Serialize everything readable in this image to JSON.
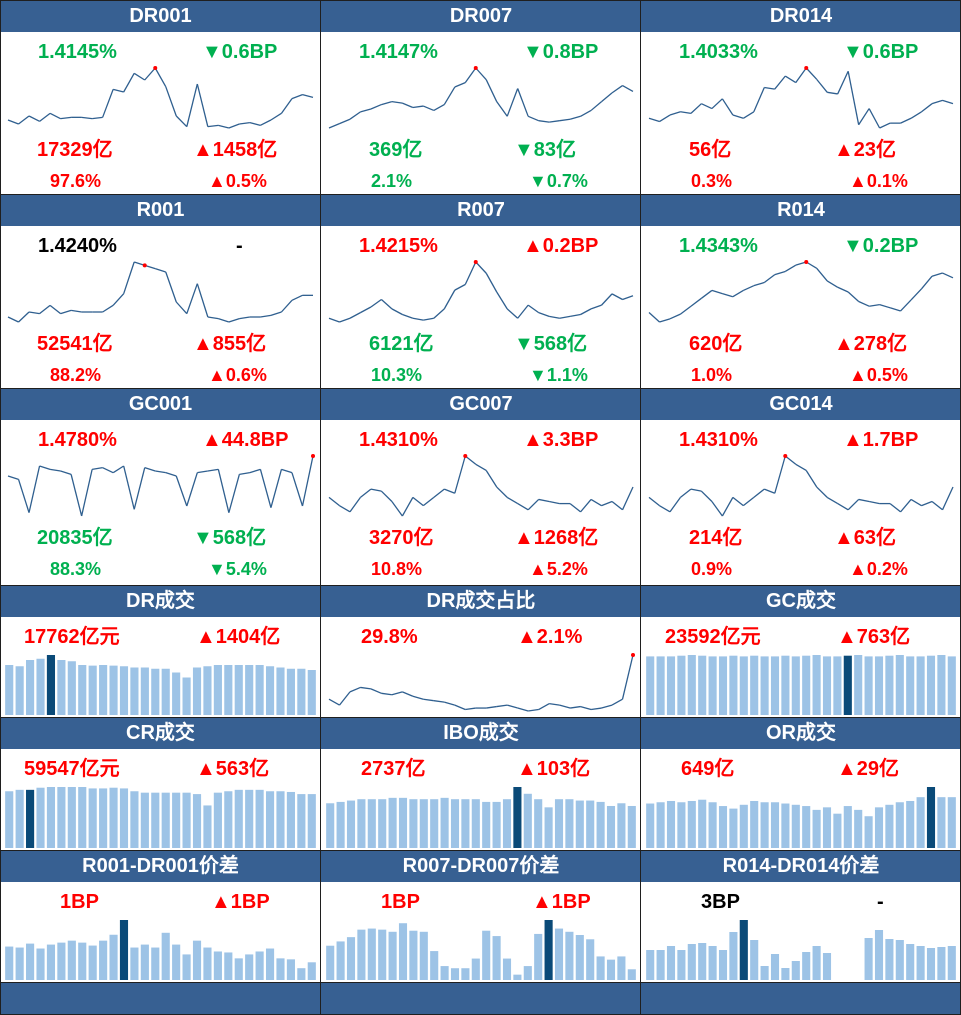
{
  "colors": {
    "up": "#ff0000",
    "down": "#00b050",
    "neutral": "#000000",
    "header_bg": "#376092",
    "line": "#2f5f8f",
    "bar": "#9dc3e6",
    "bar_highlight": "#0a4a78",
    "marker": "#ff0000"
  },
  "rate_panels": [
    {
      "id": "dr001",
      "title": "DR001",
      "rate": "1.4145%",
      "rate_color": "down",
      "bp_change": "▼0.6BP",
      "bp_color": "down",
      "volume": "17329亿",
      "volume_color": "up",
      "volume_change": "▲1458亿",
      "volume_change_color": "up",
      "share": "97.6%",
      "share_color": "up",
      "share_change": "▲0.5%",
      "share_change_color": "up",
      "chart_data": {
        "type": "line",
        "values": [
          55,
          52,
          58,
          54,
          60,
          56,
          57,
          57,
          56,
          57,
          78,
          76,
          90,
          85,
          94,
          80,
          58,
          50,
          82,
          50,
          51,
          49,
          52,
          53,
          51,
          55,
          60,
          71,
          74,
          72
        ],
        "marker_index": 14
      }
    },
    {
      "id": "dr007",
      "title": "DR007",
      "rate": "1.4147%",
      "rate_color": "down",
      "bp_change": "▼0.8BP",
      "bp_color": "down",
      "volume": "369亿",
      "volume_color": "down",
      "volume_change": "▼83亿",
      "volume_change_color": "down",
      "share": "2.1%",
      "share_color": "down",
      "share_change": "▼0.7%",
      "share_change_color": "down",
      "chart_data": {
        "type": "line",
        "values": [
          52,
          55,
          58,
          63,
          65,
          68,
          70,
          69,
          66,
          67,
          64,
          68,
          80,
          83,
          93,
          85,
          70,
          60,
          79,
          60,
          57,
          56,
          57,
          58,
          60,
          64,
          70,
          76,
          81,
          77
        ],
        "marker_index": 14
      }
    },
    {
      "id": "dr014",
      "title": "DR014",
      "rate": "1.4033%",
      "rate_color": "down",
      "bp_change": "▼0.6BP",
      "bp_color": "down",
      "volume": "56亿",
      "volume_color": "up",
      "volume_change": "▲23亿",
      "volume_change_color": "up",
      "share": "0.3%",
      "share_color": "up",
      "share_change": "▲0.1%",
      "share_change_color": "up",
      "chart_data": {
        "type": "line",
        "values": [
          66,
          64,
          68,
          70,
          69,
          75,
          72,
          78,
          68,
          66,
          70,
          85,
          84,
          92,
          88,
          97,
          90,
          82,
          81,
          95,
          62,
          72,
          60,
          63,
          63,
          66,
          70,
          75,
          77,
          75
        ],
        "marker_index": 15
      }
    },
    {
      "id": "r001",
      "title": "R001",
      "rate": "1.4240%",
      "rate_color": "neutral",
      "bp_change": "-",
      "bp_color": "neutral",
      "volume": "52541亿",
      "volume_color": "up",
      "volume_change": "▲855亿",
      "volume_change_color": "up",
      "share": "88.2%",
      "share_color": "up",
      "share_change": "▲0.6%",
      "share_change_color": "up",
      "chart_data": {
        "type": "line",
        "values": [
          48,
          45,
          51,
          50,
          55,
          50,
          52,
          51,
          51,
          51,
          55,
          62,
          81,
          79,
          77,
          75,
          57,
          50,
          68,
          48,
          47,
          45,
          47,
          48,
          48,
          49,
          51,
          58,
          61,
          61
        ],
        "marker_index": 13
      }
    },
    {
      "id": "r007",
      "title": "R007",
      "rate": "1.4215%",
      "rate_color": "up",
      "bp_change": "▲0.2BP",
      "bp_color": "up",
      "volume": "6121亿",
      "volume_color": "down",
      "volume_change": "▼568亿",
      "volume_change_color": "down",
      "share": "10.3%",
      "share_color": "down",
      "share_change": "▼1.1%",
      "share_change_color": "down",
      "chart_data": {
        "type": "line",
        "values": [
          50,
          48,
          50,
          53,
          56,
          60,
          55,
          52,
          50,
          49,
          50,
          55,
          65,
          68,
          80,
          74,
          64,
          55,
          50,
          57,
          53,
          51,
          50,
          51,
          52,
          55,
          57,
          63,
          60,
          62
        ],
        "marker_index": 14
      }
    },
    {
      "id": "r014",
      "title": "R014",
      "rate": "1.4343%",
      "rate_color": "down",
      "bp_change": "▼0.2BP",
      "bp_color": "down",
      "volume": "620亿",
      "volume_color": "up",
      "volume_change": "▲278亿",
      "volume_change_color": "up",
      "share": "1.0%",
      "share_color": "up",
      "share_change": "▲0.5%",
      "share_change_color": "up",
      "chart_data": {
        "type": "line",
        "values": [
          56,
          50,
          52,
          55,
          60,
          65,
          70,
          68,
          66,
          70,
          73,
          75,
          80,
          82,
          86,
          88,
          84,
          76,
          72,
          69,
          63,
          60,
          61,
          59,
          57,
          64,
          71,
          79,
          81,
          78
        ],
        "marker_index": 15
      }
    },
    {
      "id": "gc001",
      "title": "GC001",
      "rate": "1.4780%",
      "rate_color": "up",
      "bp_change": "▲44.8BP",
      "bp_color": "up",
      "volume": "20835亿",
      "volume_color": "down",
      "volume_change": "▼568亿",
      "volume_change_color": "down",
      "share": "88.3%",
      "share_color": "down",
      "share_change": "▼5.4%",
      "share_change_color": "down",
      "chart_data": {
        "type": "line",
        "values": [
          82,
          80,
          60,
          88,
          86,
          85,
          83,
          58,
          86,
          87,
          84,
          88,
          62,
          87,
          85,
          84,
          82,
          64,
          84,
          85,
          86,
          60,
          83,
          84,
          86,
          63,
          86,
          84,
          64,
          94
        ],
        "marker_index": 29
      }
    },
    {
      "id": "gc007",
      "title": "GC007",
      "rate": "1.4310%",
      "rate_color": "up",
      "bp_change": "▲3.3BP",
      "bp_color": "up",
      "volume": "3270亿",
      "volume_color": "up",
      "volume_change": "▲1268亿",
      "volume_change_color": "up",
      "share": "10.8%",
      "share_color": "up",
      "share_change": "▲5.2%",
      "share_change_color": "up",
      "chart_data": {
        "type": "line",
        "values": [
          70,
          66,
          63,
          70,
          74,
          73,
          68,
          61,
          70,
          66,
          70,
          74,
          72,
          90,
          86,
          83,
          75,
          70,
          67,
          64,
          69,
          68,
          67,
          67,
          63,
          69,
          66,
          68,
          64,
          75
        ],
        "marker_index": 13
      }
    },
    {
      "id": "gc014",
      "title": "GC014",
      "rate": "1.4310%",
      "rate_color": "up",
      "bp_change": "▲1.7BP",
      "bp_color": "up",
      "volume": "214亿",
      "volume_color": "up",
      "volume_change": "▲63亿",
      "volume_change_color": "up",
      "share": "0.9%",
      "share_color": "up",
      "share_change": "▲0.2%",
      "share_change_color": "up",
      "chart_data": {
        "type": "line",
        "values": [
          70,
          66,
          63,
          70,
          74,
          73,
          68,
          61,
          70,
          66,
          70,
          74,
          72,
          90,
          86,
          83,
          75,
          70,
          67,
          64,
          69,
          68,
          67,
          67,
          63,
          69,
          66,
          68,
          64,
          75
        ],
        "marker_index": 13
      }
    }
  ],
  "volume_panels": [
    {
      "id": "dr-volume",
      "title": "DR成交",
      "value": "17762亿元",
      "value_color": "up",
      "change": "▲1404亿",
      "change_color": "up",
      "chart_data": {
        "type": "bar",
        "values": [
          80,
          78,
          88,
          90,
          96,
          88,
          86,
          80,
          79,
          80,
          79,
          78,
          76,
          76,
          74,
          74,
          68,
          60,
          76,
          78,
          80,
          80,
          80,
          80,
          80,
          78,
          76,
          74,
          74,
          72
        ],
        "highlight_index": 4
      }
    },
    {
      "id": "dr-share",
      "title": "DR成交占比",
      "value": "29.8%",
      "value_color": "up",
      "change": "▲2.1%",
      "change_color": "up",
      "chart_data": {
        "type": "line",
        "values": [
          28,
          24,
          33,
          36,
          35,
          32,
          31,
          33,
          30,
          28,
          27,
          26,
          24,
          21,
          22,
          22,
          23,
          24,
          22,
          20,
          21,
          25,
          24,
          22,
          23,
          21,
          22,
          24,
          28,
          58
        ],
        "marker_index": 29
      }
    },
    {
      "id": "gc-volume",
      "title": "GC成交",
      "value": "23592亿元",
      "value_color": "up",
      "change": "▲763亿",
      "change_color": "up",
      "chart_data": {
        "type": "bar",
        "values": [
          84,
          84,
          84,
          85,
          86,
          85,
          84,
          84,
          85,
          84,
          85,
          84,
          84,
          85,
          84,
          85,
          86,
          84,
          84,
          85,
          86,
          84,
          84,
          85,
          86,
          84,
          84,
          85,
          86,
          84
        ],
        "highlight_index": 19
      }
    },
    {
      "id": "cr-volume",
      "title": "CR成交",
      "value": "59547亿元",
      "value_color": "up",
      "change": "▲563亿",
      "change_color": "up",
      "chart_data": {
        "type": "bar",
        "values": [
          80,
          82,
          82,
          85,
          86,
          86,
          86,
          86,
          84,
          84,
          85,
          84,
          80,
          78,
          78,
          78,
          78,
          78,
          76,
          60,
          78,
          80,
          82,
          82,
          82,
          80,
          80,
          79,
          76,
          76
        ],
        "highlight_index": 2
      }
    },
    {
      "id": "ibo-volume",
      "title": "IBO成交",
      "value": "2737亿",
      "value_color": "up",
      "change": "▲103亿",
      "change_color": "up",
      "chart_data": {
        "type": "bar",
        "values": [
          66,
          68,
          70,
          72,
          72,
          72,
          74,
          74,
          72,
          72,
          72,
          74,
          72,
          72,
          72,
          68,
          68,
          72,
          90,
          80,
          72,
          60,
          72,
          72,
          70,
          70,
          68,
          62,
          66,
          62
        ],
        "highlight_index": 18
      }
    },
    {
      "id": "or-volume",
      "title": "OR成交",
      "value": "649亿",
      "value_color": "up",
      "change": "▲29亿",
      "change_color": "up",
      "chart_data": {
        "type": "bar",
        "values": [
          70,
          72,
          74,
          72,
          74,
          76,
          72,
          66,
          62,
          68,
          74,
          72,
          72,
          70,
          68,
          66,
          60,
          64,
          54,
          66,
          60,
          50,
          64,
          68,
          72,
          74,
          80,
          96,
          80,
          80
        ],
        "highlight_index": 27
      }
    }
  ],
  "spread_panels": [
    {
      "id": "r001-dr001",
      "title": "R001-DR001价差",
      "value": "1BP",
      "value_color": "up",
      "change": "▲1BP",
      "change_color": "up",
      "chart_data": {
        "type": "bar",
        "values": [
          34,
          33,
          37,
          32,
          36,
          38,
          40,
          38,
          35,
          40,
          46,
          61,
          33,
          36,
          33,
          48,
          36,
          26,
          40,
          33,
          29,
          28,
          22,
          26,
          29,
          32,
          22,
          21,
          12,
          18
        ],
        "highlight_index": 11
      }
    },
    {
      "id": "r007-dr007",
      "title": "R007-DR007价差",
      "value": "1BP",
      "value_color": "up",
      "change": "▲1BP",
      "change_color": "up",
      "chart_data": {
        "type": "bar",
        "values": [
          32,
          36,
          40,
          47,
          48,
          47,
          45,
          53,
          46,
          45,
          27,
          13,
          11,
          11,
          20,
          46,
          41,
          20,
          5,
          13,
          43,
          56,
          48,
          45,
          42,
          38,
          22,
          19,
          22,
          10
        ],
        "highlight_index": 21
      }
    },
    {
      "id": "r014-dr014",
      "title": "R014-DR014价差",
      "value": "3BP",
      "value_color": "neutral",
      "change": "-",
      "change_color": "neutral",
      "chart_data": {
        "type": "bar",
        "values": [
          30,
          30,
          34,
          30,
          36,
          37,
          34,
          30,
          48,
          60,
          40,
          14,
          26,
          12,
          19,
          28,
          34,
          27,
          0,
          0,
          0,
          42,
          50,
          41,
          40,
          36,
          34,
          32,
          33,
          34
        ],
        "highlight_index": 9
      }
    }
  ]
}
